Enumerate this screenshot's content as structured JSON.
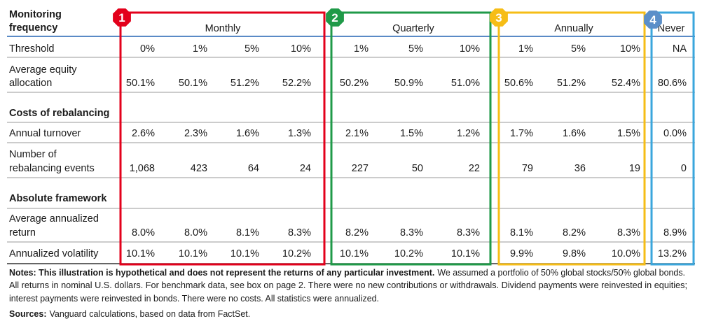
{
  "header": {
    "title": [
      "Monitoring",
      "frequency"
    ],
    "groups": [
      {
        "badge": "1",
        "label": "Monthly"
      },
      {
        "badge": "2",
        "label": "Quarterly"
      },
      {
        "badge": "3",
        "label": "Annually"
      },
      {
        "badge": "4",
        "label": "Never"
      }
    ]
  },
  "table": {
    "rows": [
      {
        "label": [
          "Threshold"
        ],
        "cells": [
          "0%",
          "1%",
          "5%",
          "10%",
          "1%",
          "5%",
          "10%",
          "1%",
          "5%",
          "10%",
          "NA"
        ]
      },
      {
        "label": [
          "Average equity",
          "allocation"
        ],
        "cells": [
          "50.1%",
          "50.1%",
          "51.2%",
          "52.2%",
          "50.2%",
          "50.9%",
          "51.0%",
          "50.6%",
          "51.2%",
          "52.4%",
          "80.6%"
        ]
      },
      {
        "label": [
          "Costs of rebalancing"
        ]
      },
      {
        "label": [
          "Annual turnover"
        ],
        "cells": [
          "2.6%",
          "2.3%",
          "1.6%",
          "1.3%",
          "2.1%",
          "1.5%",
          "1.2%",
          "1.7%",
          "1.6%",
          "1.5%",
          "0.0%"
        ]
      },
      {
        "label": [
          "Number of",
          "rebalancing events"
        ],
        "cells": [
          "1,068",
          "423",
          "64",
          "24",
          "227",
          "50",
          "22",
          "79",
          "36",
          "19",
          "0"
        ]
      },
      {
        "label": [
          "Absolute framework"
        ]
      },
      {
        "label": [
          "Average annualized",
          "return"
        ],
        "cells": [
          "8.0%",
          "8.0%",
          "8.1%",
          "8.3%",
          "8.2%",
          "8.3%",
          "8.3%",
          "8.1%",
          "8.2%",
          "8.3%",
          "8.9%"
        ]
      },
      {
        "label": [
          "Annualized volatility"
        ],
        "cells": [
          "10.1%",
          "10.1%",
          "10.1%",
          "10.2%",
          "10.1%",
          "10.2%",
          "10.1%",
          "9.9%",
          "9.8%",
          "10.0%",
          "13.2%"
        ]
      }
    ]
  },
  "notes": {
    "bold": "Notes: This illustration is hypothetical and does not represent the returns of any particular investment.",
    "lines": [
      "We assumed a portfolio of 50% global stocks/50% global bonds.",
      "All returns in nominal U.S. dollars. For benchmark data, see box on page 2. There were no new contributions or withdrawals. Dividend payments were reinvested in equities;",
      "interest payments were reinvested in bonds. There were no costs. All statistics were annualized."
    ]
  },
  "sources": {
    "bold": "Sources:",
    "text": "Vanguard calculations, based on data from FactSet."
  }
}
